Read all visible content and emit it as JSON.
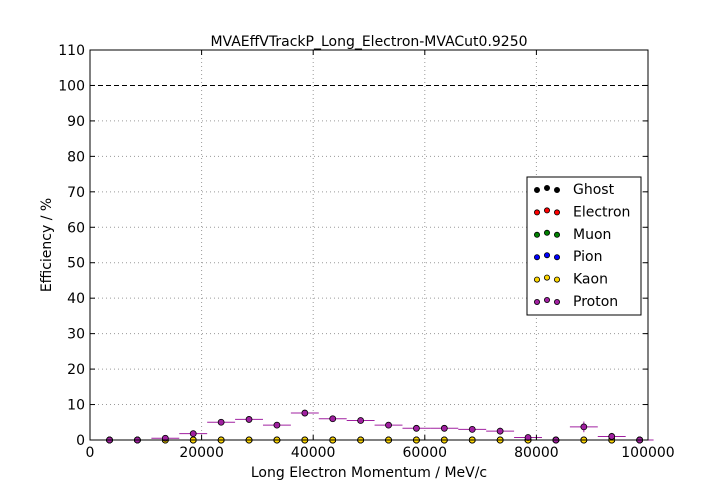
{
  "chart_data": {
    "type": "scatter",
    "title": "MVAEffVTrackP_Long_Electron-MVACut0.9250",
    "xlabel": "Long Electron Momentum / MeV/c",
    "ylabel": "Efficiency / %",
    "xlim": [
      0,
      100000
    ],
    "ylim": [
      0,
      110
    ],
    "xticks": [
      0,
      20000,
      40000,
      60000,
      80000,
      100000
    ],
    "yticks": [
      0,
      10,
      20,
      30,
      40,
      50,
      60,
      70,
      80,
      90,
      100,
      110
    ],
    "grid": true,
    "reference_line_y": 100,
    "legend_position": "right",
    "bin_width": 5000,
    "x": [
      3500,
      8500,
      13500,
      18500,
      23500,
      28500,
      33500,
      38500,
      43500,
      48500,
      53500,
      58500,
      63500,
      68500,
      73500,
      78500,
      83500,
      88500,
      93500,
      98500
    ],
    "series": [
      {
        "name": "Ghost",
        "color": "#000000",
        "values": [
          0,
          0,
          0,
          0,
          0,
          0,
          0,
          0,
          0,
          0,
          0,
          0,
          0,
          0,
          0,
          0,
          0,
          0,
          0,
          0
        ]
      },
      {
        "name": "Electron",
        "color": "#ff0000",
        "values": [
          0,
          0,
          0,
          0,
          0,
          0,
          0,
          0,
          0,
          0,
          0,
          0,
          0,
          0,
          0,
          0,
          0,
          0,
          0,
          0
        ]
      },
      {
        "name": "Muon",
        "color": "#008000",
        "values": [
          0,
          0,
          0,
          0,
          0,
          0,
          0,
          0,
          0,
          0,
          0,
          0,
          0,
          0,
          0,
          0,
          0,
          0,
          0,
          0
        ]
      },
      {
        "name": "Pion",
        "color": "#0000ff",
        "values": [
          0,
          0,
          0,
          0,
          0,
          0,
          0,
          0,
          0,
          0,
          0,
          0,
          0,
          0,
          0,
          0,
          0,
          0,
          0,
          0
        ]
      },
      {
        "name": "Kaon",
        "color": "#ffd700",
        "values": [
          0,
          0,
          0,
          0,
          0,
          0,
          0,
          0,
          0,
          0,
          0,
          0,
          0,
          0,
          0,
          0,
          0,
          0,
          0,
          0
        ]
      },
      {
        "name": "Proton",
        "color": "#a020a0",
        "values": [
          0,
          0,
          0.5,
          1.8,
          5.0,
          5.8,
          4.2,
          7.6,
          6.0,
          5.5,
          4.2,
          3.3,
          3.3,
          3.0,
          2.5,
          0.7,
          0,
          3.7,
          1.0,
          0
        ],
        "errors": [
          0.1,
          0.1,
          0.3,
          0.5,
          0.7,
          0.8,
          0.7,
          0.9,
          0.8,
          0.8,
          0.8,
          0.7,
          0.8,
          0.9,
          1.0,
          0.5,
          0.2,
          1.5,
          1.0,
          0.3
        ]
      }
    ]
  }
}
